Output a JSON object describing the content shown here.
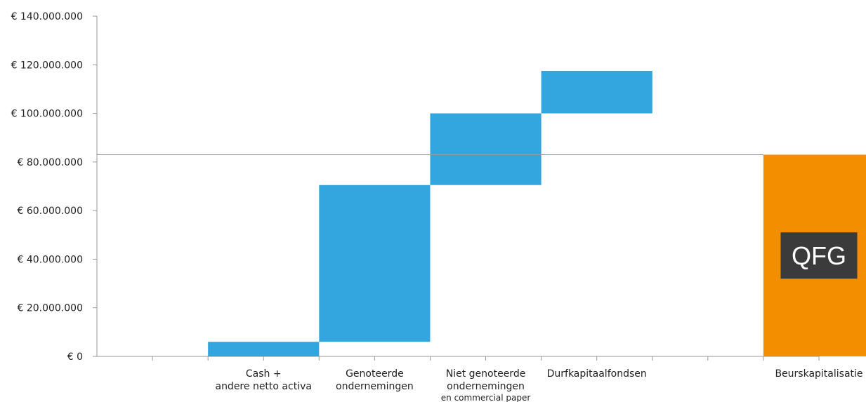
{
  "chart_data": {
    "type": "bar",
    "subtype": "waterfall",
    "ylim": [
      0,
      140000000
    ],
    "y_ticks": [
      {
        "value": 0,
        "label": "€ 0"
      },
      {
        "value": 20000000,
        "label": "€ 20.000.000"
      },
      {
        "value": 40000000,
        "label": "€ 40.000.000"
      },
      {
        "value": 60000000,
        "label": "€ 60.000.000"
      },
      {
        "value": 80000000,
        "label": "€ 80.000.000"
      },
      {
        "value": 100000000,
        "label": "€ 100.000.000"
      },
      {
        "value": 120000000,
        "label": "€ 120.000.000"
      },
      {
        "value": 140000000,
        "label": "€ 140.000.000"
      }
    ],
    "categories": [
      {
        "label": [
          "Cash +",
          "andere netto activa"
        ],
        "bottom": 0,
        "top": 6000000,
        "color": "#33a6e0"
      },
      {
        "label": [
          "Genoteerde",
          "ondernemingen"
        ],
        "bottom": 6000000,
        "top": 70500000,
        "color": "#33a6e0"
      },
      {
        "label": [
          "Niet genoteerde",
          "ondernemingen",
          "en commercial paper"
        ],
        "bottom": 70500000,
        "top": 100000000,
        "color": "#33a6e0"
      },
      {
        "label": [
          "Durfkapitaalfondsen"
        ],
        "bottom": 100000000,
        "top": 117500000,
        "color": "#33a6e0"
      },
      {
        "label": [
          "Beurskapitalisatie"
        ],
        "bottom": 0,
        "top": 83000000,
        "color": "#f28e00",
        "logo": "QFG"
      }
    ],
    "reference_line": 83000000,
    "colors": {
      "increase": "#33a6e0",
      "total": "#f28e00",
      "logo_bg": "#3b3b3b",
      "reference": "#999999"
    },
    "grid": false
  }
}
